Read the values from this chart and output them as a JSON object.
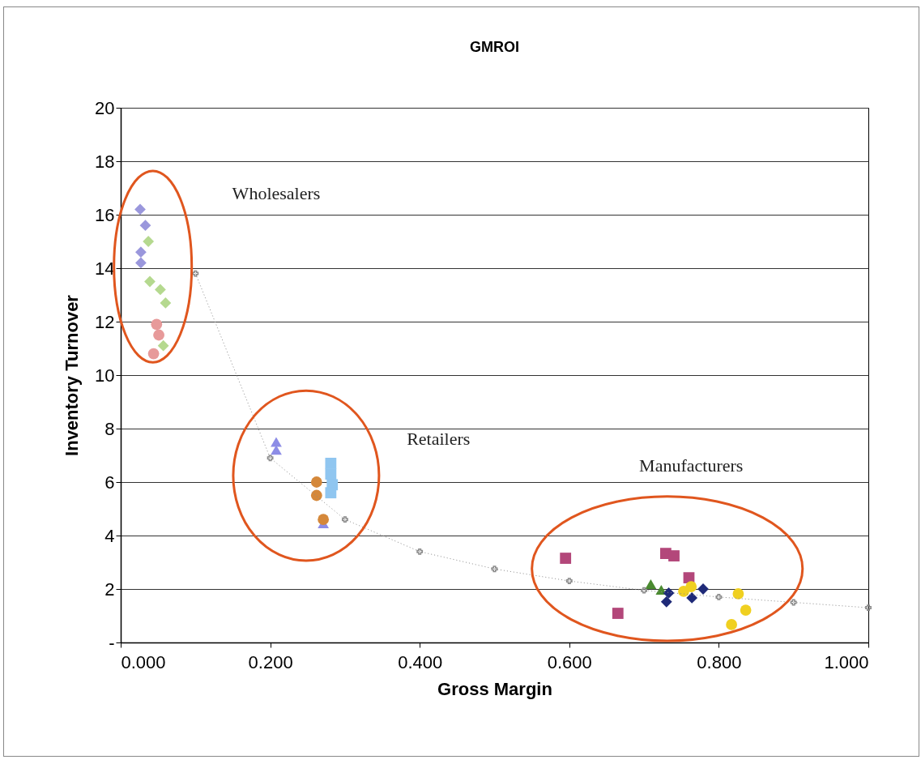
{
  "chart_data": {
    "type": "scatter",
    "title": "GMROI",
    "xlabel": "Gross Margin",
    "ylabel": "Inventory Turnover",
    "xlim": [
      0,
      1
    ],
    "xticks": [
      {
        "value": 0,
        "label": "0.000"
      },
      {
        "value": 0.2,
        "label": "0.200"
      },
      {
        "value": 0.4,
        "label": "0.400"
      },
      {
        "value": 0.6,
        "label": "0.600"
      },
      {
        "value": 0.8,
        "label": "0.800"
      },
      {
        "value": 1,
        "label": "1.000"
      }
    ],
    "ylim": [
      0,
      20
    ],
    "yticks": [
      {
        "value": 0,
        "label": "-"
      },
      2,
      4,
      6,
      8,
      10,
      12,
      14,
      16,
      18,
      20
    ],
    "grid": "y",
    "series": [
      {
        "color": "#9a97dc",
        "marker": "diamond",
        "x": [
          0.026,
          0.033,
          0.027,
          0.027
        ],
        "values": [
          16.2,
          15.6,
          14.6,
          14.2
        ]
      },
      {
        "color": "#b5d98f",
        "marker": "diamond",
        "x": [
          0.037,
          0.039,
          0.053,
          0.06,
          0.057
        ],
        "values": [
          15.0,
          13.5,
          13.2,
          12.7,
          11.1
        ]
      },
      {
        "color": "#e79a9a",
        "marker": "circle",
        "x": [
          0.048,
          0.051,
          0.044
        ],
        "values": [
          11.9,
          11.5,
          10.8
        ]
      },
      {
        "color": "#8c8ce6",
        "marker": "triangle",
        "x": [
          0.208,
          0.208,
          0.271
        ],
        "values": [
          7.5,
          7.2,
          4.45
        ]
      },
      {
        "color": "#90c6f0",
        "marker": "square",
        "x": [
          0.281,
          0.281,
          0.283,
          0.281
        ],
        "values": [
          6.7,
          6.3,
          5.9,
          5.6
        ]
      },
      {
        "color": "#d5883a",
        "marker": "circle",
        "x": [
          0.262,
          0.262,
          0.271
        ],
        "values": [
          6.0,
          5.5,
          4.6
        ]
      },
      {
        "color": "#b3477a",
        "marker": "square",
        "x": [
          0.595,
          0.729,
          0.74,
          0.76,
          0.665
        ],
        "values": [
          3.15,
          3.33,
          3.24,
          2.42,
          1.09
        ]
      },
      {
        "color": "#4a8a30",
        "marker": "triangle",
        "x": [
          0.709,
          0.723
        ],
        "values": [
          2.18,
          1.97
        ]
      },
      {
        "color": "#1f2a78",
        "marker": "diamond",
        "x": [
          0.733,
          0.73,
          0.764,
          0.779
        ],
        "values": [
          1.85,
          1.52,
          1.67,
          2.0
        ]
      },
      {
        "color": "#f0d020",
        "marker": "circle",
        "x": [
          0.753,
          0.763,
          0.826,
          0.836,
          0.817
        ],
        "values": [
          1.91,
          2.09,
          1.82,
          1.21,
          0.67
        ]
      },
      {
        "type": "line",
        "color": "#8a8a8a",
        "marker": "cross",
        "line_style": "dotted",
        "x": [
          0.1,
          0.2,
          0.3,
          0.4,
          0.5,
          0.6,
          0.7,
          0.8,
          0.9,
          1.0
        ],
        "values": [
          13.8,
          6.9,
          4.6,
          3.4,
          2.75,
          2.3,
          1.95,
          1.7,
          1.5,
          1.3
        ]
      }
    ],
    "annotations": [
      "Wholesalers",
      "Retailers",
      "Manufacturers"
    ]
  }
}
